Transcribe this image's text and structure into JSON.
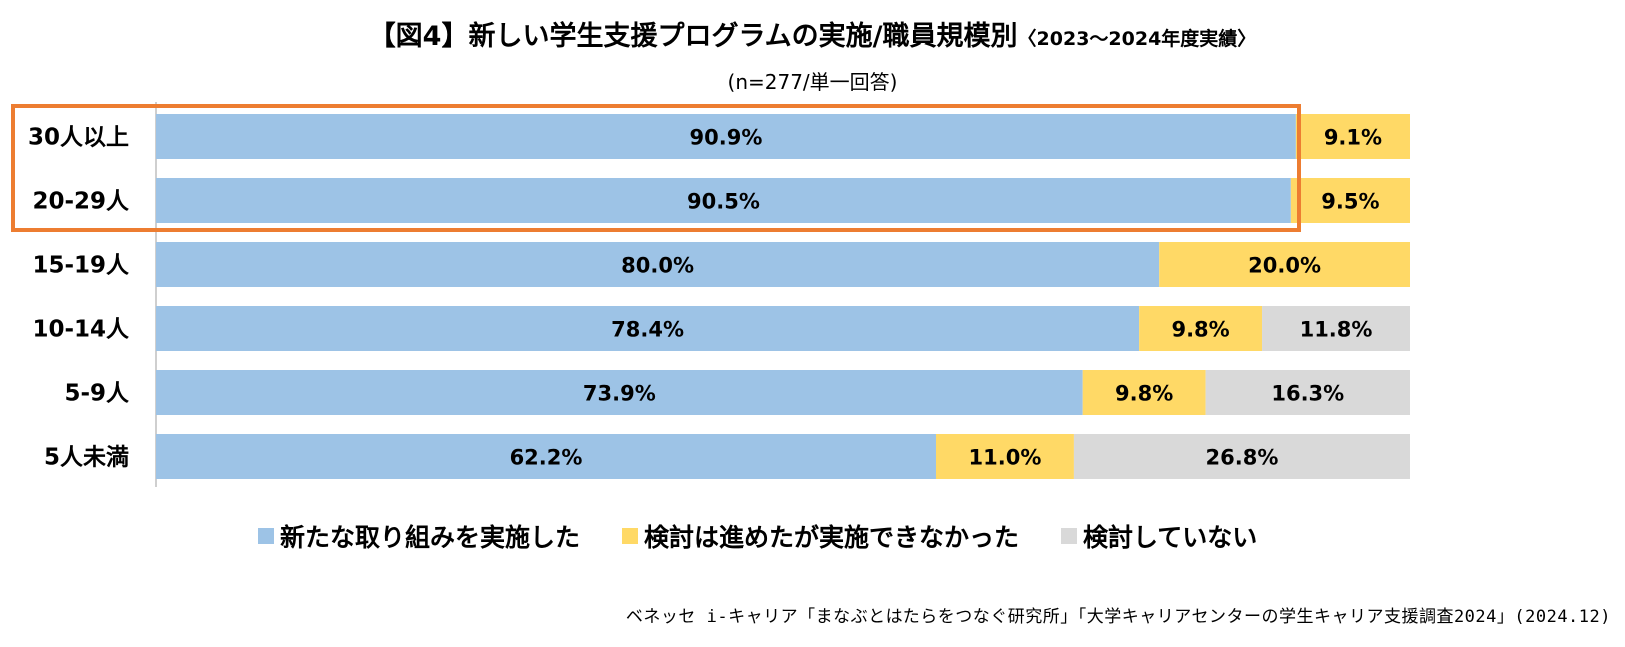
{
  "title": {
    "main": "【図4】新しい学生支援プログラムの実施/職員規模別",
    "period": "〈2023〜2024年度実績〉"
  },
  "subtitle": "(n=277/単一回答)",
  "source": "ベネッセ i-キャリア「まなぶとはたらをつなぐ研究所」「大学キャリアセンターの学生キャリア支援調査2024」(2024.12)",
  "colors": {
    "implemented": "#9DC3E6",
    "considered": "#FFD966",
    "not_considered": "#D9D9D9",
    "highlight": "#ED7D31"
  },
  "legend": [
    {
      "name": "新たな取り組みを実施した",
      "color": "#9DC3E6"
    },
    {
      "name": "検討は進めたが実施できなかった",
      "color": "#FFD966"
    },
    {
      "name": "検討していない",
      "color": "#D9D9D9"
    }
  ],
  "chart_data": {
    "type": "bar",
    "orientation": "horizontal",
    "stacked": true,
    "title": "【図4】新しい学生支援プログラムの実施/職員規模別〈2023〜2024年度実績〉",
    "subtitle": "(n=277/単一回答)",
    "categories": [
      "30人以上",
      "20-29人",
      "15-19人",
      "10-14人",
      "5-9人",
      "5人未満"
    ],
    "series": [
      {
        "name": "新たな取り組みを実施した",
        "values": [
          90.9,
          90.5,
          80.0,
          78.4,
          73.9,
          62.2
        ]
      },
      {
        "name": "検討は進めたが実施できなかった",
        "values": [
          9.1,
          9.5,
          20.0,
          9.8,
          9.8,
          11.0
        ]
      },
      {
        "name": "検討していない",
        "values": [
          0,
          0,
          0,
          11.8,
          16.3,
          26.8
        ]
      }
    ],
    "xlim": [
      0,
      100
    ],
    "unit": "%",
    "highlighted_categories": [
      "30人以上",
      "20-29人"
    ],
    "legend_position": "bottom"
  }
}
